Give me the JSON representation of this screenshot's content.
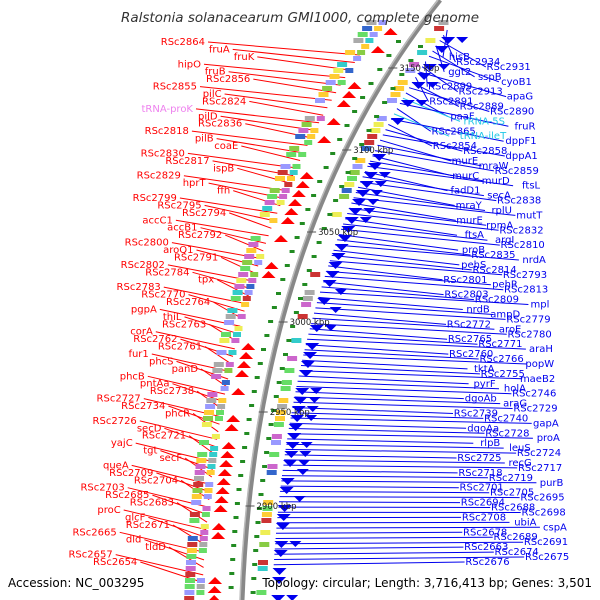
{
  "title": "Ralstonia solanacearum GMI1000, complete genome",
  "accession": "Accession: NC_003295",
  "summary": "Topology: circular; Length: 3,716,413 bp; Genes: 3,501",
  "colors": {
    "forward": "#ff0000",
    "reverse": "#0000ee",
    "trna": "#ee82ee",
    "rrna": "#22c8e6",
    "backbone": "#888888",
    "marker": "#228b22"
  },
  "scale_labels": [
    "3150 kbp",
    "3100 kbp",
    "3050 kbp",
    "3000 kbp",
    "2950 kbp",
    "2900 kbp"
  ],
  "left_labels": [
    "RSc2864",
    "fruA",
    "fruK",
    "hipO",
    "fruB",
    "RSc2856",
    "RSc2855",
    "pilC",
    "RSc2824",
    "tRNA-proK",
    "pilD",
    "RSc2836",
    "RSc2818",
    "pilB",
    "coaE",
    "RSc2830",
    "RSc2817",
    "ispB",
    "RSc2829",
    "hprT",
    "ffh",
    "RSc2799",
    "RSc2795",
    "RSc2794",
    "accC1",
    "accB1",
    "RSc2792",
    "RSc2800",
    "aroQ1",
    "RSc2791",
    "RSc2802",
    "RSc2784",
    "tpx",
    "RSc2783",
    "RSc2770",
    "RSc2764",
    "pgpA",
    "thiL",
    "RSc2763",
    "corA",
    "RSc2762",
    "RSc2761",
    "fur1",
    "phcS",
    "panD",
    "phcB",
    "pntAa",
    "RSc2738",
    "RSc2727",
    "RSc2734",
    "phcR",
    "RSc2726",
    "secD",
    "RSc2721",
    "yajC",
    "tgt",
    "secF",
    "queA",
    "RSc2709",
    "RSc2704",
    "RSc2703",
    "RSc2685",
    "RSc2683",
    "proC",
    "glcF",
    "RSc2671",
    "RSc2665",
    "dld",
    "tldD",
    "RSc2657",
    "RSc2654"
  ],
  "right_labels": [
    "hisB",
    "RSc2934",
    "RSc2931",
    "ggt2",
    "sspB",
    "cyoB1",
    "RSc2899",
    "RSc2913",
    "apaG",
    "RSc2891",
    "RSc2889",
    "RSc2890",
    "paaF",
    "rRNA-5S",
    "fruR",
    "RSc2865",
    "tRNA-ileT",
    "dppF1",
    "RSc2854",
    "RSc2858",
    "dppA1",
    "murE",
    "mraW",
    "RSc2859",
    "murC",
    "murD",
    "ftsL",
    "fadD1",
    "secA",
    "RSc2838",
    "mraY",
    "rplU",
    "mutT",
    "murE",
    "rpmA",
    "RSc2832",
    "ftsA",
    "argI",
    "RSc2810",
    "proB",
    "RSc2835",
    "nrdA",
    "pehS",
    "RSc2814",
    "RSc2793",
    "RSc2801",
    "pehR",
    "RSc2813",
    "RSc2803",
    "RSc2809",
    "mpl",
    "nrdB",
    "ampD",
    "RSc2779",
    "RSc2772",
    "aroE",
    "RSc2780",
    "RSc2765",
    "RSc2771",
    "araH",
    "RSc2760",
    "RSc2766",
    "popW",
    "tktA",
    "RSc2755",
    "maeB2",
    "pyrF",
    "holA",
    "RSc2746",
    "dgoAb",
    "araG",
    "RSc2729",
    "RSc2739",
    "RSc2740",
    "gapA",
    "dgoAa",
    "RSc2728",
    "proA",
    "rlpB",
    "leuS",
    "RSc2724",
    "RSc2725",
    "recG",
    "RSc2717",
    "RSc2718",
    "RSc2719",
    "purB",
    "RSc2701",
    "RSc2705",
    "RSc2695",
    "RSc2694",
    "RSc2688",
    "RSc2698",
    "RSc2708",
    "ubiA",
    "cspA",
    "RSc2678",
    "RSc2689",
    "RSc2691",
    "RSc2663",
    "RSc2674",
    "RSc2675",
    "RSc2676"
  ]
}
